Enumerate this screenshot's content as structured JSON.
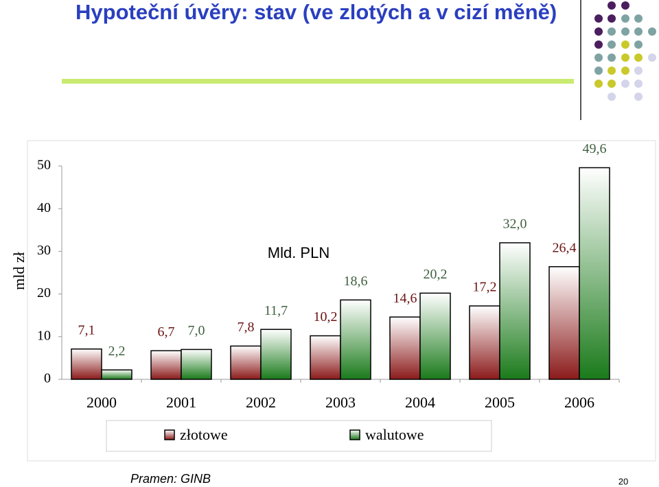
{
  "chart_data": {
    "type": "bar",
    "title": "Hypoteční úvěry: stav (ve zlotých a v cizí měně)",
    "y_label": "mld zł",
    "annotation": "Mld. PLN",
    "categories": [
      "2000",
      "2001",
      "2002",
      "2003",
      "2004",
      "2005",
      "2006"
    ],
    "series": [
      {
        "name": "złotowe",
        "color": "#8b1a1a",
        "label_color": "#6b1414",
        "values": [
          7.1,
          6.7,
          7.8,
          10.2,
          14.6,
          17.2,
          26.4
        ],
        "value_labels": [
          "7,1",
          "6,7",
          "7,8",
          "10,2",
          "14,6",
          "17,2",
          "26,4"
        ]
      },
      {
        "name": "walutowe",
        "color": "#1a7a1a",
        "label_color": "#3f5f3f",
        "values": [
          2.2,
          7.0,
          11.7,
          18.6,
          20.2,
          32.0,
          49.6
        ],
        "value_labels": [
          "2,2",
          "7,0",
          "11,7",
          "18,6",
          "20,2",
          "32,0",
          "49,6"
        ]
      }
    ],
    "ylim": [
      0,
      50
    ],
    "yticks": [
      0,
      10,
      20,
      30,
      40,
      50
    ]
  },
  "footer": {
    "source": "Pramen: GINB",
    "page": "20"
  }
}
